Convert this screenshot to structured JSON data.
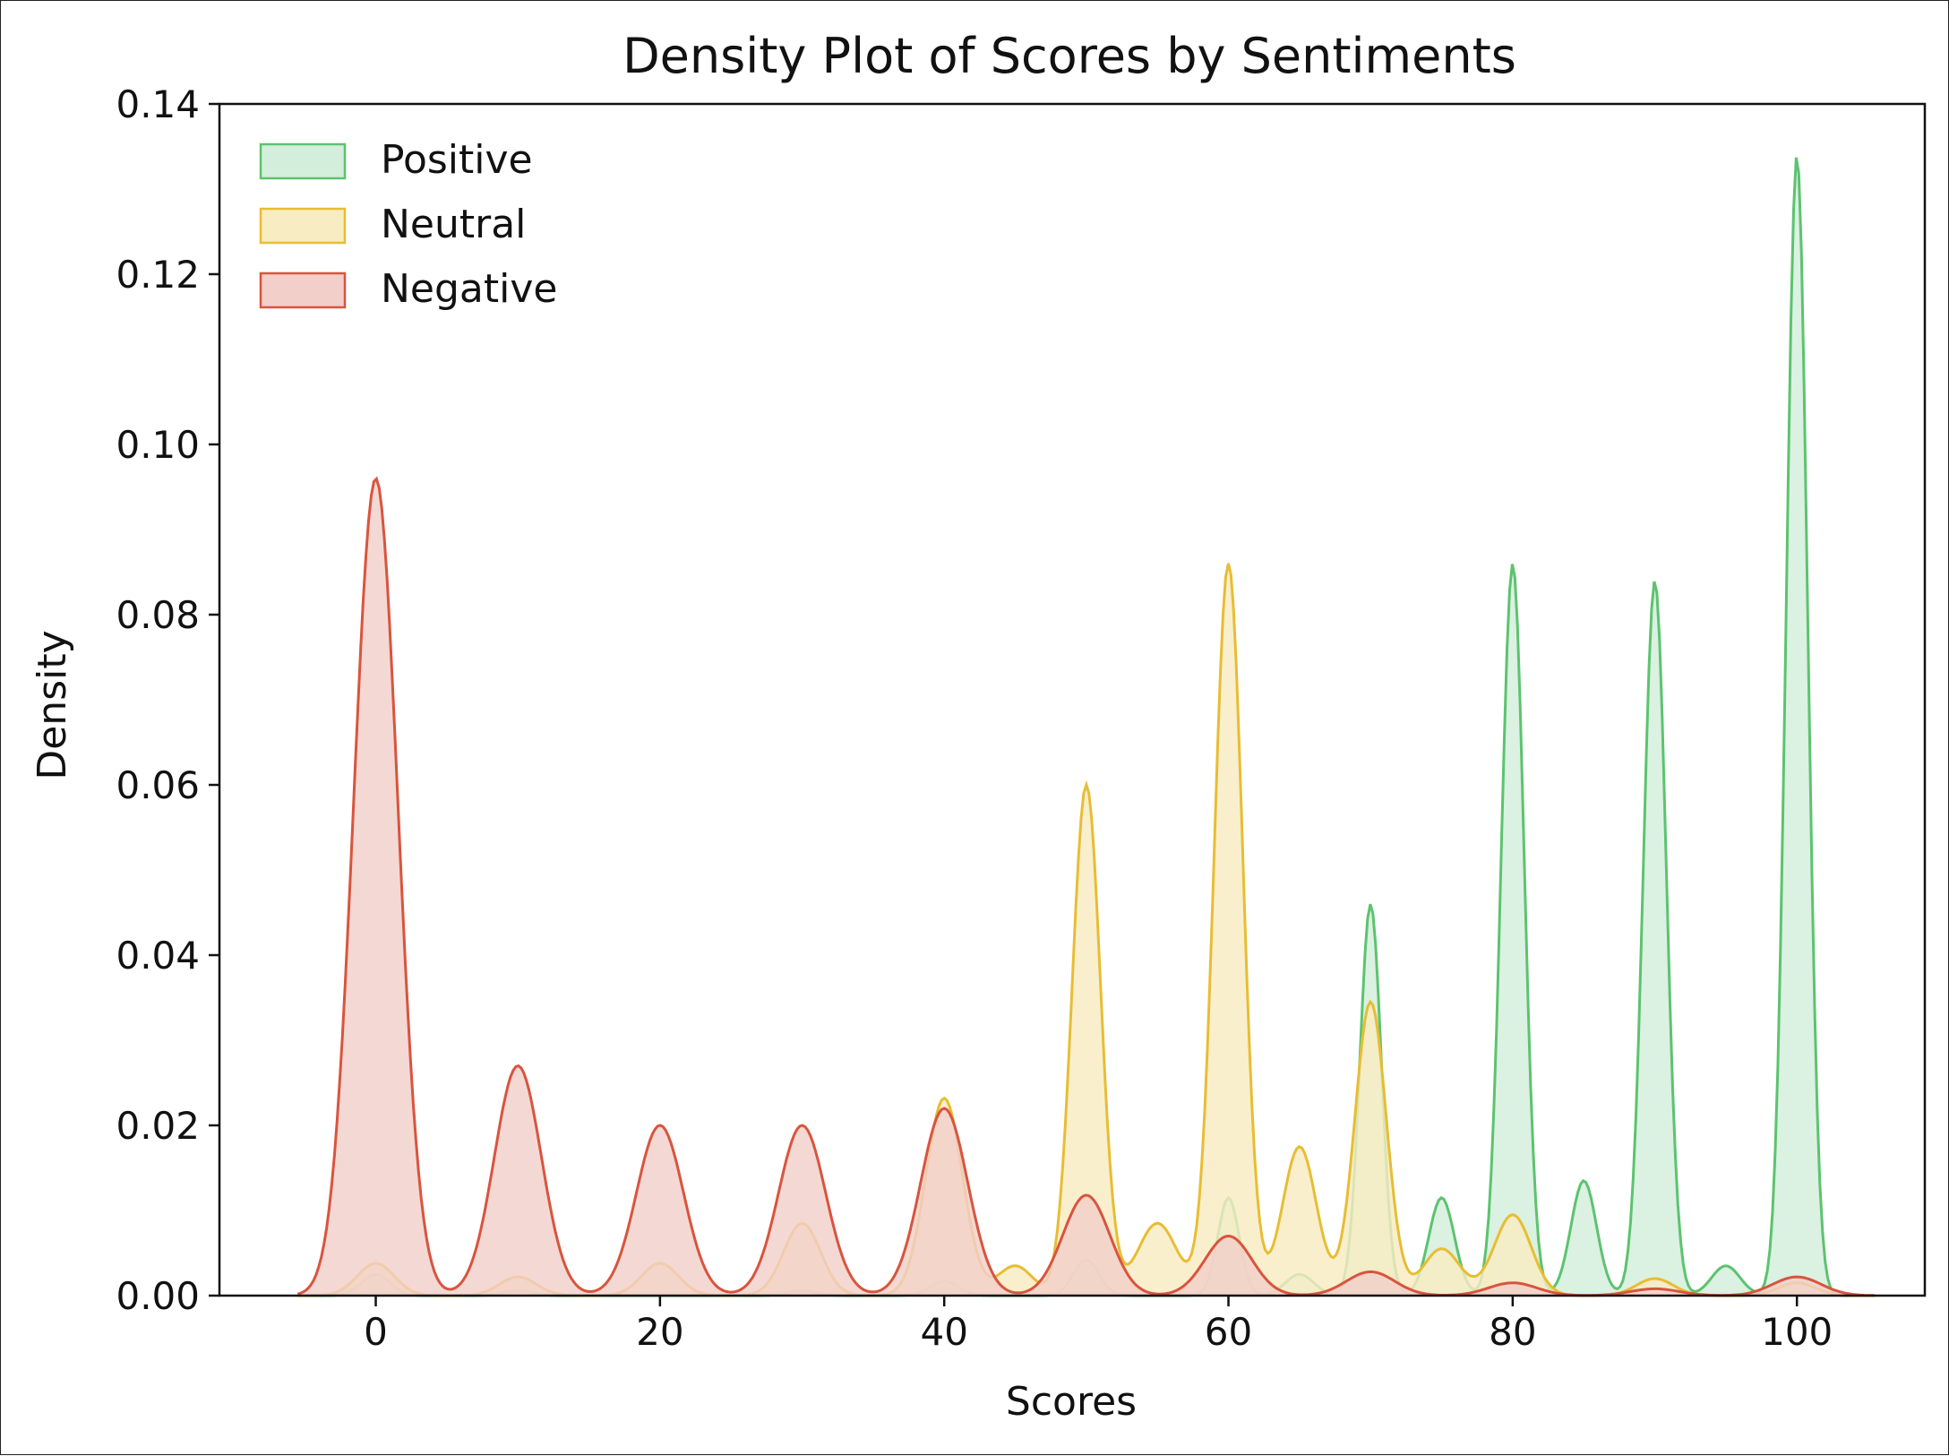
{
  "chart_data": {
    "type": "area",
    "title": "Density Plot of Scores by Sentiments",
    "xlabel": "Scores",
    "ylabel": "Density",
    "xlim": [
      -11,
      109
    ],
    "ylim": [
      0,
      0.14
    ],
    "xticks": [
      0,
      20,
      40,
      60,
      80,
      100
    ],
    "yticks": [
      0.0,
      0.02,
      0.04,
      0.06,
      0.08,
      0.1,
      0.12,
      0.14
    ],
    "xtick_labels": [
      "0",
      "20",
      "40",
      "60",
      "80",
      "100"
    ],
    "ytick_labels": [
      "0.00",
      "0.02",
      "0.04",
      "0.06",
      "0.08",
      "0.10",
      "0.12",
      "0.14"
    ],
    "grid": false,
    "legend_position": "top-left",
    "x_range": [
      -5.5,
      105.5
    ],
    "series": [
      {
        "name": "Positive",
        "color": "#5cc36f",
        "fill": "#d3eedb",
        "peaks": [
          {
            "x": 0,
            "y": 0.0025,
            "sd": 1.0
          },
          {
            "x": 10,
            "y": 0.0006,
            "sd": 1.0
          },
          {
            "x": 30,
            "y": 0.0006,
            "sd": 1.0
          },
          {
            "x": 40,
            "y": 0.0017,
            "sd": 1.0
          },
          {
            "x": 50,
            "y": 0.0042,
            "sd": 0.9
          },
          {
            "x": 60,
            "y": 0.0115,
            "sd": 0.75
          },
          {
            "x": 65,
            "y": 0.0025,
            "sd": 1.0
          },
          {
            "x": 70,
            "y": 0.046,
            "sd": 0.75
          },
          {
            "x": 75,
            "y": 0.0115,
            "sd": 0.9
          },
          {
            "x": 80,
            "y": 0.086,
            "sd": 0.8
          },
          {
            "x": 85,
            "y": 0.0135,
            "sd": 0.9
          },
          {
            "x": 90,
            "y": 0.084,
            "sd": 0.8
          },
          {
            "x": 95,
            "y": 0.0035,
            "sd": 1.0
          },
          {
            "x": 100,
            "y": 0.134,
            "sd": 0.75
          }
        ]
      },
      {
        "name": "Neutral",
        "color": "#e8bd33",
        "fill": "#f8ecc2",
        "peaks": [
          {
            "x": 0,
            "y": 0.0038,
            "sd": 1.3
          },
          {
            "x": 10,
            "y": 0.0022,
            "sd": 1.3
          },
          {
            "x": 20,
            "y": 0.0038,
            "sd": 1.3
          },
          {
            "x": 30,
            "y": 0.0085,
            "sd": 1.3
          },
          {
            "x": 40,
            "y": 0.0232,
            "sd": 1.3
          },
          {
            "x": 45,
            "y": 0.0035,
            "sd": 1.2
          },
          {
            "x": 50,
            "y": 0.06,
            "sd": 1.0
          },
          {
            "x": 55,
            "y": 0.0085,
            "sd": 1.4
          },
          {
            "x": 60,
            "y": 0.086,
            "sd": 1.0
          },
          {
            "x": 65,
            "y": 0.0175,
            "sd": 1.2
          },
          {
            "x": 70,
            "y": 0.0345,
            "sd": 1.1
          },
          {
            "x": 75,
            "y": 0.0055,
            "sd": 1.3
          },
          {
            "x": 80,
            "y": 0.0095,
            "sd": 1.3
          },
          {
            "x": 90,
            "y": 0.002,
            "sd": 1.3
          },
          {
            "x": 100,
            "y": 0.0015,
            "sd": 1.3
          }
        ]
      },
      {
        "name": "Negative",
        "color": "#d9543e",
        "fill": "#f2cfc9",
        "peaks": [
          {
            "x": 0,
            "y": 0.096,
            "sd": 1.55
          },
          {
            "x": 10,
            "y": 0.027,
            "sd": 1.65
          },
          {
            "x": 20,
            "y": 0.02,
            "sd": 1.65
          },
          {
            "x": 30,
            "y": 0.02,
            "sd": 1.65
          },
          {
            "x": 40,
            "y": 0.022,
            "sd": 1.65
          },
          {
            "x": 50,
            "y": 0.0118,
            "sd": 1.65
          },
          {
            "x": 60,
            "y": 0.007,
            "sd": 1.65
          },
          {
            "x": 70,
            "y": 0.0028,
            "sd": 1.7
          },
          {
            "x": 80,
            "y": 0.0015,
            "sd": 1.7
          },
          {
            "x": 90,
            "y": 0.0008,
            "sd": 1.7
          },
          {
            "x": 100,
            "y": 0.0022,
            "sd": 1.7
          }
        ]
      }
    ]
  }
}
